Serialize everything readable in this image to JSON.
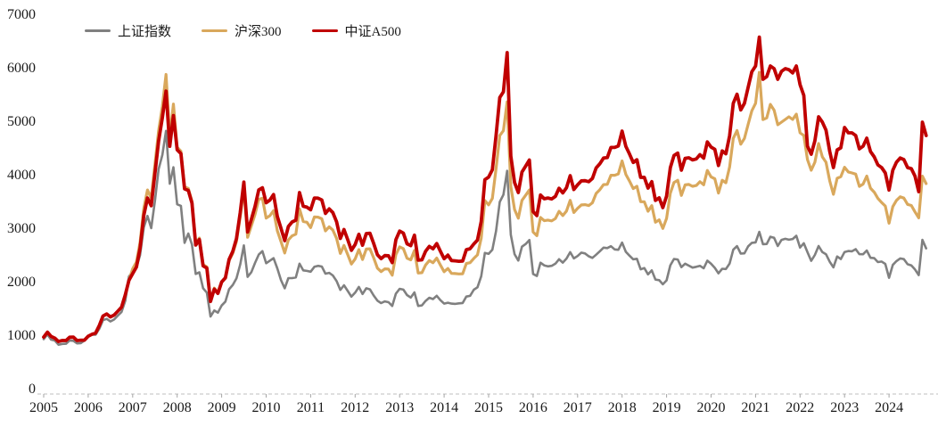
{
  "chart_data": {
    "type": "line",
    "title": "",
    "x_start_year": 2005,
    "x_step_months": 1,
    "x_tick_labels": [
      "2005",
      "2006",
      "2007",
      "2008",
      "2009",
      "2010",
      "2011",
      "2012",
      "2013",
      "2014",
      "2015",
      "2016",
      "2017",
      "2018",
      "2019",
      "2020",
      "2021",
      "2022",
      "2023",
      "2024"
    ],
    "ylim": [
      0,
      7000
    ],
    "y_ticks": [
      0,
      1000,
      2000,
      3000,
      4000,
      5000,
      6000,
      7000
    ],
    "grid": false,
    "legend_position": "top-left",
    "background_color": "#ffffff",
    "axis_line_color": "#bfbfbf",
    "tick_label_color": "#1a1a1a",
    "series": [
      {
        "name": "上证指数",
        "color": "#808080",
        "line_width": 2.6,
        "values": [
          941,
          1032,
          933,
          916,
          838,
          854,
          856,
          919,
          912,
          863,
          868,
          917,
          994,
          1026,
          1025,
          1138,
          1296,
          1321,
          1273,
          1310,
          1384,
          1451,
          1658,
          2113,
          2201,
          2276,
          2515,
          3034,
          3246,
          3018,
          3532,
          4122,
          4386,
          4836,
          3848,
          4156,
          3463,
          3435,
          2743,
          2917,
          2712,
          2161,
          2192,
          1894,
          1811,
          1365,
          1478,
          1438,
          1572,
          1645,
          1875,
          1957,
          2079,
          2338,
          2695,
          2107,
          2195,
          2366,
          2524,
          2589,
          2361,
          2410,
          2456,
          2267,
          2048,
          1894,
          2083,
          2084,
          2097,
          2353,
          2228,
          2218,
          2204,
          2295,
          2313,
          2300,
          2167,
          2182,
          2134,
          2028,
          1864,
          1950,
          1843,
          1737,
          1811,
          1918,
          1787,
          1893,
          1874,
          1758,
          1661,
          1617,
          1648,
          1634,
          1564,
          1793,
          1884,
          1868,
          1766,
          1720,
          1817,
          1563,
          1574,
          1657,
          1717,
          1691,
          1754,
          1672,
          1606,
          1624,
          1606,
          1601,
          1611,
          1618,
          1739,
          1751,
          1867,
          1912,
          2119,
          2555,
          2536,
          2615,
          2960,
          3508,
          3643,
          4090,
          2894,
          2532,
          2411,
          2672,
          2722,
          2796,
          2162,
          2123,
          2372,
          2321,
          2304,
          2314,
          2353,
          2437,
          2373,
          2449,
          2568,
          2451,
          2496,
          2560,
          2545,
          2492,
          2462,
          2522,
          2586,
          2654,
          2645,
          2680,
          2620,
          2613,
          2749,
          2575,
          2503,
          2435,
          2445,
          2249,
          2272,
          2153,
          2229,
          2056,
          2045,
          1969,
          2041,
          2323,
          2441,
          2432,
          2289,
          2353,
          2316,
          2280,
          2295,
          2314,
          2268,
          2410,
          2351,
          2275,
          2173,
          2259,
          2253,
          2357,
          2615,
          2682,
          2542,
          2547,
          2679,
          2744,
          2752,
          2948,
          2718,
          2722,
          2856,
          2837,
          2684,
          2799,
          2819,
          2802,
          2815,
          2875,
          2655,
          2735,
          2569,
          2407,
          2517,
          2684,
          2570,
          2530,
          2389,
          2285,
          2489,
          2440,
          2571,
          2590,
          2585,
          2625,
          2531,
          2530,
          2600,
          2464,
          2457,
          2384,
          2393,
          2349,
          2090,
          2330,
          2402,
          2452,
          2438,
          2344,
          2321,
          2245,
          2140,
          2800,
          2640
        ]
      },
      {
        "name": "沪深300",
        "color": "#D9A85C",
        "line_width": 3.2,
        "values": [
          982,
          1074,
          993,
          961,
          899,
          919,
          917,
          979,
          980,
          917,
          924,
          923,
          997,
          1034,
          1057,
          1198,
          1375,
          1414,
          1359,
          1394,
          1466,
          1540,
          1770,
          2041,
          2259,
          2385,
          2754,
          3393,
          3731,
          3580,
          4213,
          4841,
          5296,
          5891,
          4737,
          5338,
          4528,
          4457,
          3790,
          3761,
          3522,
          2729,
          2833,
          2335,
          2293,
          1663,
          1897,
          1817,
          2011,
          2080,
          2408,
          2547,
          2769,
          3227,
          3766,
          2846,
          3060,
          3274,
          3555,
          3576,
          3205,
          3251,
          3345,
          2972,
          2769,
          2553,
          2797,
          2874,
          2905,
          3380,
          3143,
          3128,
          3029,
          3226,
          3223,
          3194,
          2967,
          3044,
          2981,
          2825,
          2545,
          2695,
          2524,
          2346,
          2442,
          2616,
          2431,
          2627,
          2632,
          2461,
          2270,
          2205,
          2257,
          2254,
          2139,
          2523,
          2669,
          2635,
          2455,
          2425,
          2600,
          2179,
          2185,
          2329,
          2411,
          2371,
          2459,
          2330,
          2204,
          2264,
          2172,
          2168,
          2161,
          2165,
          2356,
          2372,
          2451,
          2518,
          2830,
          3534,
          3454,
          3574,
          4124,
          4748,
          4840,
          5380,
          3797,
          3366,
          3203,
          3536,
          3635,
          3731,
          2946,
          2877,
          3218,
          3157,
          3169,
          3154,
          3196,
          3331,
          3254,
          3337,
          3538,
          3310,
          3388,
          3452,
          3456,
          3440,
          3492,
          3666,
          3738,
          3831,
          3837,
          4006,
          4006,
          4031,
          4275,
          4023,
          3898,
          3757,
          3802,
          3511,
          3512,
          3334,
          3439,
          3129,
          3173,
          3011,
          3202,
          3672,
          3872,
          3913,
          3630,
          3826,
          3835,
          3800,
          3815,
          3887,
          3828,
          4097,
          3977,
          3940,
          3674,
          3913,
          3867,
          4164,
          4696,
          4844,
          4587,
          4695,
          4960,
          5211,
          5352,
          5931,
          5048,
          5078,
          5332,
          5224,
          4950,
          5000,
          5050,
          5100,
          5050,
          5150,
          4800,
          4750,
          4300,
          4100,
          4250,
          4600,
          4350,
          4250,
          3900,
          3650,
          3950,
          3980,
          4157,
          4069,
          4050,
          4029,
          3799,
          3842,
          3991,
          3765,
          3690,
          3573,
          3496,
          3431,
          3110,
          3420,
          3537,
          3604,
          3580,
          3462,
          3442,
          3321,
          3210,
          3990,
          3850
        ]
      },
      {
        "name": "中证A500",
        "color": "#C00000",
        "line_width": 3.8,
        "values": [
          982,
          1074,
          993,
          961,
          899,
          919,
          917,
          979,
          980,
          917,
          924,
          923,
          997,
          1034,
          1057,
          1198,
          1375,
          1414,
          1359,
          1394,
          1466,
          1540,
          1770,
          2041,
          2169,
          2290,
          2644,
          3257,
          3582,
          3437,
          4044,
          4647,
          5084,
          5580,
          4548,
          5124,
          4483,
          4412,
          3752,
          3723,
          3487,
          2702,
          2805,
          2312,
          2270,
          1646,
          1878,
          1799,
          2011,
          2090,
          2432,
          2585,
          2824,
          3308,
          3879,
          2946,
          3182,
          3421,
          3733,
          3773,
          3493,
          3544,
          3646,
          3239,
          3018,
          2783,
          3049,
          3133,
          3166,
          3684,
          3426,
          3410,
          3362,
          3581,
          3578,
          3545,
          3293,
          3379,
          3309,
          3136,
          2825,
          2991,
          2802,
          2604,
          2711,
          2904,
          2698,
          2916,
          2922,
          2732,
          2520,
          2448,
          2505,
          2502,
          2374,
          2801,
          2963,
          2925,
          2725,
          2692,
          2886,
          2419,
          2425,
          2585,
          2676,
          2632,
          2730,
          2586,
          2446,
          2513,
          2411,
          2406,
          2399,
          2403,
          2615,
          2633,
          2721,
          2795,
          3141,
          3923,
          3972,
          4110,
          4743,
          5460,
          5566,
          6300,
          4367,
          3871,
          3683,
          4066,
          4180,
          4291,
          3329,
          3251,
          3636,
          3567,
          3581,
          3564,
          3611,
          3764,
          3677,
          3771,
          3998,
          3740,
          3828,
          3901,
          3905,
          3887,
          3946,
          4143,
          4224,
          4329,
          4336,
          4527,
          4527,
          4555,
          4831,
          4546,
          4405,
          4245,
          4296,
          3967,
          3969,
          3767,
          3886,
          3536,
          3585,
          3402,
          3618,
          4149,
          4375,
          4422,
          4102,
          4323,
          4334,
          4294,
          4311,
          4392,
          4326,
          4630,
          4534,
          4492,
          4188,
          4461,
          4408,
          4747,
          5353,
          5522,
          5229,
          5352,
          5654,
          5941,
          6048,
          6590,
          5800,
          5850,
          6050,
          6000,
          5800,
          5950,
          6000,
          5980,
          5920,
          6050,
          5700,
          5500,
          4550,
          4400,
          4650,
          5100,
          5000,
          4850,
          4450,
          4150,
          4480,
          4520,
          4900,
          4800,
          4800,
          4750,
          4500,
          4550,
          4700,
          4450,
          4350,
          4200,
          4150,
          4050,
          3730,
          4100,
          4250,
          4330,
          4300,
          4150,
          4130,
          3990,
          3700,
          5000,
          4750
        ]
      }
    ]
  }
}
